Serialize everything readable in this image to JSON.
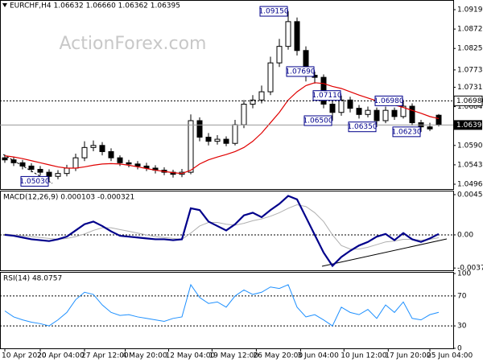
{
  "chart_data": [
    {
      "type": "candlestick",
      "title": "EURCHF,H4  1.06632 1.06660 1.06362 1.06395",
      "watermark": "ActionForex.com",
      "open": [
        1.056,
        1.0555,
        1.0548,
        1.054,
        1.0532,
        1.0525,
        1.0515,
        1.0522,
        1.0535,
        1.056,
        1.0585,
        1.059,
        1.0575,
        1.056,
        1.0548,
        1.0545,
        1.054,
        1.0535,
        1.053,
        1.0525,
        1.052,
        1.0525,
        1.065,
        1.061,
        1.06,
        1.0605,
        1.0595,
        1.064,
        1.069,
        1.07,
        1.072,
        1.079,
        1.083,
        1.089,
        1.082,
        1.076,
        1.0755,
        1.069,
        1.067,
        1.07,
        1.068,
        1.0665,
        1.0675,
        1.065,
        1.0675,
        1.066,
        1.0685,
        1.0645,
        1.0635,
        1.06632
      ],
      "high": [
        1.0568,
        1.0562,
        1.0555,
        1.0547,
        1.054,
        1.0532,
        1.053,
        1.0543,
        1.057,
        1.06,
        1.0602,
        1.0598,
        1.0583,
        1.0566,
        1.0555,
        1.0552,
        1.0548,
        1.0542,
        1.0537,
        1.0531,
        1.0533,
        1.0665,
        1.0658,
        1.062,
        1.0615,
        1.0612,
        1.0652,
        1.07,
        1.0712,
        1.0735,
        1.0805,
        1.0848,
        1.0915,
        1.09,
        1.083,
        1.0769,
        1.0762,
        1.0698,
        1.0711,
        1.0708,
        1.0688,
        1.0684,
        1.0682,
        1.0684,
        1.0682,
        1.0698,
        1.0692,
        1.0652,
        1.0645,
        1.0666
      ],
      "low": [
        1.0548,
        1.054,
        1.0532,
        1.0525,
        1.0517,
        1.0503,
        1.0508,
        1.0515,
        1.0528,
        1.0552,
        1.0576,
        1.0566,
        1.0552,
        1.054,
        1.0537,
        1.0532,
        1.0528,
        1.0522,
        1.0518,
        1.0512,
        1.0513,
        1.052,
        1.06,
        1.059,
        1.0592,
        1.0588,
        1.059,
        1.0632,
        1.068,
        1.0692,
        1.0712,
        1.078,
        1.0822,
        1.0808,
        1.0745,
        1.074,
        1.068,
        1.065,
        1.0662,
        1.067,
        1.0655,
        1.0658,
        1.0635,
        1.0644,
        1.0652,
        1.0655,
        1.0638,
        1.0623,
        1.0625,
        1.06362
      ],
      "close": [
        1.0555,
        1.0548,
        1.054,
        1.0532,
        1.0525,
        1.0515,
        1.0522,
        1.0535,
        1.056,
        1.0585,
        1.059,
        1.0575,
        1.056,
        1.0548,
        1.0545,
        1.054,
        1.0535,
        1.053,
        1.0525,
        1.052,
        1.0525,
        1.065,
        1.061,
        1.06,
        1.0605,
        1.0595,
        1.064,
        1.069,
        1.07,
        1.072,
        1.079,
        1.083,
        1.089,
        1.082,
        1.076,
        1.0755,
        1.069,
        1.067,
        1.07,
        1.068,
        1.0665,
        1.0675,
        1.065,
        1.0675,
        1.066,
        1.0685,
        1.0645,
        1.0635,
        1.063,
        1.06395
      ],
      "moving_average": {
        "color": "#e00000",
        "values": [
          1.0565,
          1.0562,
          1.0558,
          1.0553,
          1.0548,
          1.0543,
          1.0538,
          1.0535,
          1.0535,
          1.0538,
          1.0542,
          1.0545,
          1.0546,
          1.0545,
          1.0542,
          1.0538,
          1.0534,
          1.053,
          1.0527,
          1.0524,
          1.0522,
          1.053,
          1.0545,
          1.0555,
          1.0562,
          1.0568,
          1.0575,
          1.0585,
          1.06,
          1.062,
          1.0645,
          1.067,
          1.07,
          1.072,
          1.0735,
          1.0742,
          1.074,
          1.0733,
          1.0728,
          1.072,
          1.0712,
          1.0705,
          1.0698,
          1.0692,
          1.0688,
          1.0682,
          1.0675,
          1.0668,
          1.066,
          1.0655
        ]
      },
      "ylim": [
        1.04843,
        1.09385
      ],
      "yticks": [
        {
          "value": 1.0919,
          "label": "1.09190"
        },
        {
          "value": 1.0872,
          "label": "1.08720"
        },
        {
          "value": 1.0825,
          "label": "1.08250"
        },
        {
          "value": 1.0773,
          "label": "1.07730"
        },
        {
          "value": 1.0731,
          "label": "1.07310"
        },
        {
          "value": 1.0684,
          "label": "1.06840"
        },
        {
          "value": 1.059,
          "label": "1.05900"
        },
        {
          "value": 1.0543,
          "label": "1.05430"
        },
        {
          "value": 1.0496,
          "label": "1.04960"
        }
      ],
      "level_line": {
        "value": 1.0698,
        "label": "1.06980"
      },
      "last_price": {
        "value": 1.06395,
        "label": "1.06395"
      },
      "annotations": [
        {
          "index": 32,
          "value": 1.0915,
          "label": "1.09150"
        },
        {
          "index": 35,
          "value": 1.0769,
          "label": "1.07690"
        },
        {
          "index": 38,
          "value": 1.0711,
          "label": "1.07110"
        },
        {
          "index": 45,
          "value": 1.0698,
          "label": "1.06980"
        },
        {
          "index": 37,
          "value": 1.065,
          "label": "1.06500"
        },
        {
          "index": 42,
          "value": 1.0635,
          "label": "1.06350"
        },
        {
          "index": 47,
          "value": 1.0623,
          "label": "1.06230"
        },
        {
          "index": 5,
          "value": 1.0503,
          "label": "1.05030"
        }
      ],
      "xticks": [
        {
          "value": 0,
          "label": "10 Apr 2020"
        },
        {
          "value": 4,
          "label": "20 Apr 04:00"
        },
        {
          "value": 9,
          "label": "27 Apr 12:00"
        },
        {
          "value": 13.6,
          "label": "4 May 20:00"
        },
        {
          "value": 18.5,
          "label": "12 May 04:00"
        },
        {
          "value": 23.4,
          "label": "19 May 12:00"
        },
        {
          "value": 28.4,
          "label": "26 May 20:00"
        },
        {
          "value": 33.4,
          "label": "3 Jun 04:00"
        },
        {
          "value": 38.3,
          "label": "10 Jun 12:00"
        },
        {
          "value": 43.3,
          "label": "17 Jun 20:00"
        },
        {
          "value": 48,
          "label": "25 Jun 04:00"
        }
      ]
    },
    {
      "type": "line",
      "title": "MACD(12,26,9) 0.000103 -0.000321",
      "series": [
        {
          "color": "#00008b",
          "width": 2.2,
          "values": [
            0.0,
            -0.0001,
            -0.0003,
            -0.0005,
            -0.0006,
            -0.0007,
            -0.0005,
            -0.0002,
            0.0005,
            0.0012,
            0.0015,
            0.001,
            0.0004,
            -0.0001,
            -0.0002,
            -0.0003,
            -0.0004,
            -0.0005,
            -0.0005,
            -0.0006,
            -0.0005,
            0.003,
            0.0028,
            0.0015,
            0.001,
            0.0005,
            0.0012,
            0.0022,
            0.0025,
            0.002,
            0.0028,
            0.0035,
            0.0044,
            0.004,
            0.002,
            0.0,
            -0.002,
            -0.0035,
            -0.0025,
            -0.0018,
            -0.0012,
            -0.0008,
            -0.0002,
            0.0001,
            -0.0006,
            0.0002,
            -0.0005,
            -0.0008,
            -0.0004,
            0.000103
          ]
        },
        {
          "color": "#b0b0b0",
          "width": 1,
          "values": [
            0.0001,
            0.0,
            -0.0001,
            -0.0002,
            -0.0003,
            -0.0004,
            -0.0005,
            -0.0004,
            -0.0002,
            0.0001,
            0.0005,
            0.0008,
            0.0008,
            0.0006,
            0.0004,
            0.0002,
            0.0,
            -0.0002,
            -0.0003,
            -0.0004,
            -0.0005,
            0.0002,
            0.001,
            0.0014,
            0.0014,
            0.0012,
            0.0011,
            0.0013,
            0.0016,
            0.0018,
            0.0021,
            0.0025,
            0.003,
            0.0034,
            0.0032,
            0.0025,
            0.0015,
            0.0,
            -0.0012,
            -0.0016,
            -0.0016,
            -0.0014,
            -0.0011,
            -0.0008,
            -0.0007,
            -0.0005,
            -0.0005,
            -0.0006,
            -0.0005,
            -0.000321
          ]
        }
      ],
      "ylim": [
        -0.004,
        0.0049
      ],
      "yticks": [
        0.00454,
        {
          "value": 0,
          "label": "0.00"
        },
        -0.003745
      ],
      "hlines": [
        0
      ]
    },
    {
      "type": "line",
      "title": "RSI(14) 48.0757",
      "series": [
        {
          "color": "#1e90ff",
          "width": 1,
          "values": [
            50,
            42,
            38,
            35,
            33,
            30,
            38,
            48,
            65,
            75,
            72,
            58,
            48,
            44,
            45,
            42,
            40,
            38,
            36,
            40,
            42,
            85,
            68,
            60,
            62,
            55,
            70,
            78,
            72,
            75,
            82,
            80,
            85,
            55,
            42,
            45,
            38,
            30,
            55,
            48,
            45,
            52,
            40,
            58,
            48,
            62,
            40,
            38,
            45,
            48.0757
          ]
        }
      ],
      "ylim": [
        0,
        100
      ],
      "yticks": [
        100,
        70,
        30,
        0
      ],
      "hlines": [
        70,
        30
      ]
    }
  ]
}
